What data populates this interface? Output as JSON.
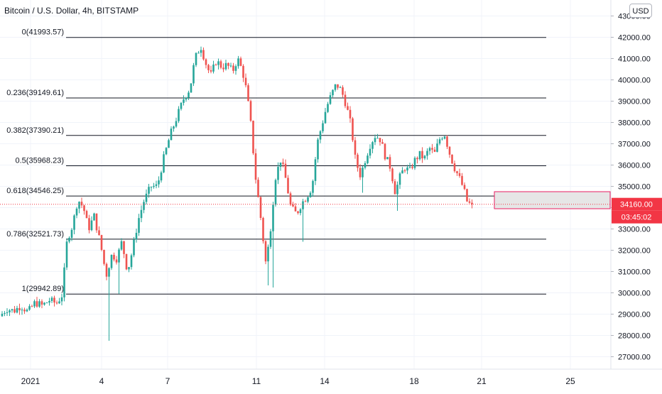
{
  "header": {
    "title": "Bitcoin / U.S. Dollar, 4h, BITSTAMP",
    "currency_button": "USD"
  },
  "price_tag": {
    "price": "34160.00",
    "countdown": "03:45:02",
    "color": "#f23645"
  },
  "colors": {
    "up": "#26a69a",
    "down": "#ef5350",
    "fib_line": "#131722",
    "grid": "#f0f3fa",
    "axis_text": "#131722",
    "zone_fill": "#e6e6e6",
    "zone_border": "#e91e63"
  },
  "chart_data": {
    "type": "candlestick",
    "y_axis": {
      "range": [
        26300,
        43400
      ],
      "ticks": [
        "27000.00",
        "28000.00",
        "29000.00",
        "30000.00",
        "31000.00",
        "32000.00",
        "33000.00",
        "34000.00",
        "35000.00",
        "36000.00",
        "37000.00",
        "38000.00",
        "39000.00",
        "40000.00",
        "41000.00",
        "42000.00",
        "43000.00"
      ],
      "tick_values": [
        27000,
        28000,
        29000,
        30000,
        31000,
        32000,
        33000,
        34000,
        35000,
        36000,
        37000,
        38000,
        39000,
        40000,
        41000,
        42000,
        43000
      ]
    },
    "x_axis": {
      "ticks": [
        {
          "label": "2021",
          "bar": 40
        },
        {
          "label": "4",
          "bar": 140
        },
        {
          "label": "7",
          "bar": 233
        },
        {
          "label": "11",
          "bar": 358
        },
        {
          "label": "14",
          "bar": 454
        },
        {
          "label": "18",
          "bar": 580
        },
        {
          "label": "21",
          "bar": 675
        },
        {
          "label": "25",
          "bar": 800
        }
      ]
    },
    "fibonacci": [
      {
        "label": "0(41993.57)",
        "value": 41993.57
      },
      {
        "label": "0.236(39149.61)",
        "value": 39149.61
      },
      {
        "label": "0.382(37390.21)",
        "value": 37390.21
      },
      {
        "label": "0.5(35968.23)",
        "value": 35968.23
      },
      {
        "label": "0.618(34546.25)",
        "value": 34546.25
      },
      {
        "label": "0.786(32521.73)",
        "value": 32521.73
      },
      {
        "label": "1(29942.89)",
        "value": 29942.89
      }
    ],
    "current_price": 34160,
    "zone": {
      "y_range": [
        33950,
        34750
      ]
    },
    "anchors": [
      [
        0,
        28900
      ],
      [
        10,
        29250
      ],
      [
        20,
        29150
      ],
      [
        30,
        29400
      ],
      [
        40,
        29100
      ],
      [
        50,
        29550
      ],
      [
        60,
        29400
      ],
      [
        70,
        29650
      ],
      [
        80,
        29500
      ],
      [
        88,
        29900
      ],
      [
        95,
        32500
      ],
      [
        103,
        33200
      ],
      [
        110,
        34400
      ],
      [
        118,
        34000
      ],
      [
        125,
        33000
      ],
      [
        133,
        33600
      ],
      [
        142,
        32300
      ],
      [
        150,
        30800
      ],
      [
        158,
        31800
      ],
      [
        165,
        31600
      ],
      [
        172,
        32400
      ],
      [
        180,
        31000
      ],
      [
        187,
        32000
      ],
      [
        195,
        33400
      ],
      [
        203,
        34300
      ],
      [
        213,
        35000
      ],
      [
        222,
        35000
      ],
      [
        230,
        36200
      ],
      [
        240,
        37400
      ],
      [
        250,
        38300
      ],
      [
        260,
        39200
      ],
      [
        268,
        39600
      ],
      [
        275,
        41000
      ],
      [
        283,
        41600
      ],
      [
        290,
        40800
      ],
      [
        297,
        40200
      ],
      [
        305,
        40900
      ],
      [
        313,
        40600
      ],
      [
        320,
        40700
      ],
      [
        328,
        40400
      ],
      [
        335,
        41000
      ],
      [
        342,
        40400
      ],
      [
        348,
        39400
      ],
      [
        354,
        37800
      ],
      [
        360,
        35500
      ],
      [
        368,
        33400
      ],
      [
        375,
        31300
      ],
      [
        381,
        32900
      ],
      [
        388,
        35400
      ],
      [
        396,
        36300
      ],
      [
        403,
        35300
      ],
      [
        410,
        34000
      ],
      [
        418,
        33700
      ],
      [
        425,
        34200
      ],
      [
        432,
        34500
      ],
      [
        440,
        35000
      ],
      [
        447,
        37000
      ],
      [
        453,
        37800
      ],
      [
        460,
        38700
      ],
      [
        467,
        39300
      ],
      [
        474,
        39800
      ],
      [
        481,
        39500
      ],
      [
        488,
        38800
      ],
      [
        495,
        37800
      ],
      [
        501,
        36200
      ],
      [
        508,
        35500
      ],
      [
        515,
        36300
      ],
      [
        522,
        37000
      ],
      [
        529,
        37400
      ],
      [
        536,
        37200
      ],
      [
        543,
        36400
      ],
      [
        550,
        35900
      ],
      [
        557,
        34700
      ],
      [
        563,
        35400
      ],
      [
        570,
        35900
      ],
      [
        577,
        35700
      ],
      [
        584,
        36200
      ],
      [
        591,
        36500
      ],
      [
        598,
        36300
      ],
      [
        605,
        36800
      ],
      [
        612,
        36500
      ],
      [
        619,
        37200
      ],
      [
        626,
        37500
      ],
      [
        633,
        36600
      ],
      [
        640,
        35900
      ],
      [
        647,
        35400
      ],
      [
        653,
        34900
      ],
      [
        658,
        34300
      ],
      [
        662,
        34160
      ]
    ]
  }
}
